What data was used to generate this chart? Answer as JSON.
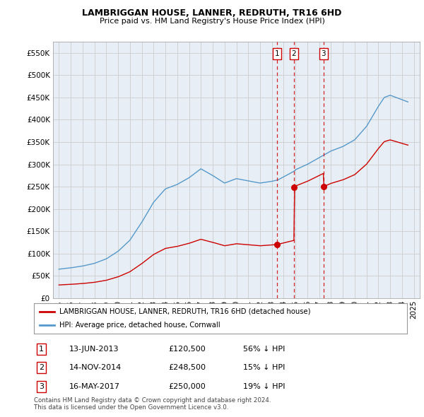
{
  "title": "LAMBRIGGAN HOUSE, LANNER, REDRUTH, TR16 6HD",
  "subtitle": "Price paid vs. HM Land Registry's House Price Index (HPI)",
  "legend_label_red": "LAMBRIGGAN HOUSE, LANNER, REDRUTH, TR16 6HD (detached house)",
  "legend_label_blue": "HPI: Average price, detached house, Cornwall",
  "ytick_values": [
    0,
    50000,
    100000,
    150000,
    200000,
    250000,
    300000,
    350000,
    400000,
    450000,
    500000,
    550000
  ],
  "transactions": [
    {
      "num": 1,
      "x_year": 2013.45,
      "price": 120500,
      "label": "1",
      "pct": "56% ↓ HPI",
      "date_str": "13-JUN-2013",
      "price_str": "£120,500"
    },
    {
      "num": 2,
      "x_year": 2014.87,
      "price": 248500,
      "label": "2",
      "pct": "15% ↓ HPI",
      "date_str": "14-NOV-2014",
      "price_str": "£248,500"
    },
    {
      "num": 3,
      "x_year": 2017.37,
      "price": 250000,
      "label": "3",
      "pct": "19% ↓ HPI",
      "date_str": "16-MAY-2017",
      "price_str": "£250,000"
    }
  ],
  "x_min": 1994.5,
  "x_max": 2025.5,
  "y_min": 0,
  "y_max": 575000,
  "footer_line1": "Contains HM Land Registry data © Crown copyright and database right 2024.",
  "footer_line2": "This data is licensed under the Open Government Licence v3.0.",
  "color_red": "#cc0000",
  "color_blue": "#5599cc",
  "color_grid": "#cccccc",
  "color_vline": "#cc0000",
  "bg_color": "#e8eef5"
}
